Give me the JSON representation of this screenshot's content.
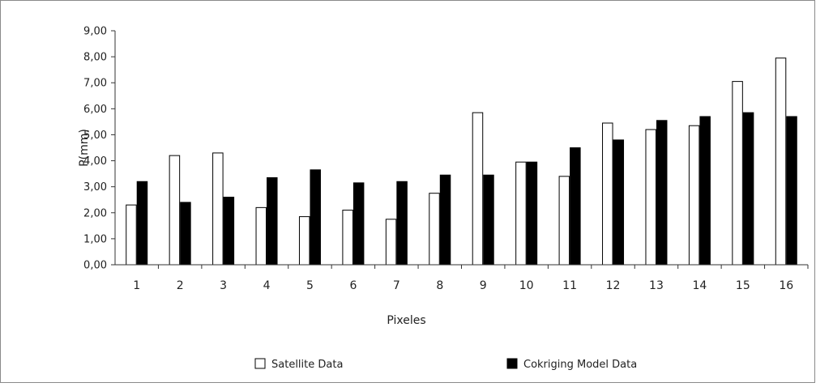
{
  "chart_data": {
    "type": "bar",
    "title": "",
    "xlabel": "Pixeles",
    "ylabel": "P(mm)",
    "ylim": [
      0,
      9
    ],
    "yticks": [
      "0,00",
      "1,00",
      "2,00",
      "3,00",
      "4,00",
      "5,00",
      "6,00",
      "7,00",
      "8,00",
      "9,00"
    ],
    "categories": [
      "1",
      "2",
      "3",
      "4",
      "5",
      "6",
      "7",
      "8",
      "9",
      "10",
      "11",
      "12",
      "13",
      "14",
      "15",
      "16"
    ],
    "series": [
      {
        "name": "Satellite Data",
        "color": "#ffffff",
        "values": [
          2.3,
          4.2,
          4.3,
          2.2,
          1.85,
          2.1,
          1.75,
          2.75,
          5.85,
          3.95,
          3.4,
          5.45,
          5.2,
          5.35,
          7.05,
          7.95
        ]
      },
      {
        "name": "Cokriging Model Data",
        "color": "#000000",
        "values": [
          3.2,
          2.4,
          2.6,
          3.35,
          3.65,
          3.15,
          3.2,
          3.45,
          3.45,
          3.95,
          4.5,
          4.8,
          5.55,
          5.7,
          5.85,
          5.7
        ]
      }
    ],
    "grid": false,
    "legend_position": "bottom"
  }
}
